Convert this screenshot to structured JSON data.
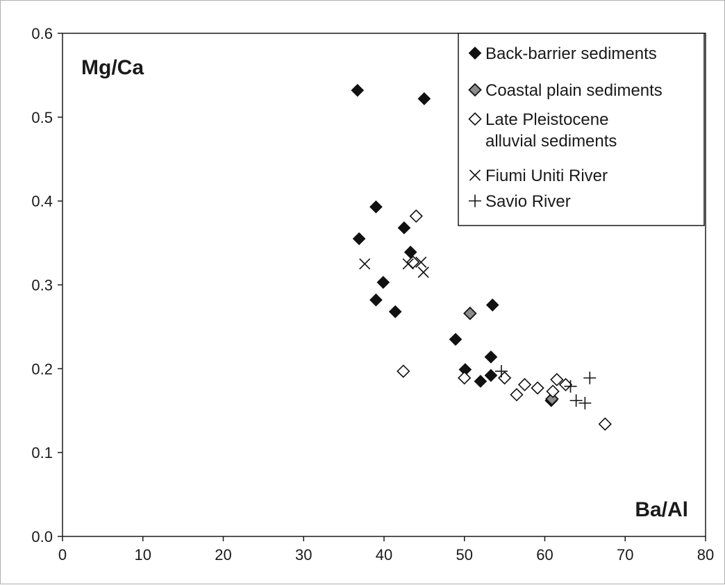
{
  "chart_data": {
    "type": "scatter",
    "ylabel": "Mg/Ca",
    "xlabel": "Ba/Al",
    "xlim": [
      0,
      80
    ],
    "ylim": [
      0.0,
      0.6
    ],
    "x_ticks": [
      "0",
      "10",
      "20",
      "30",
      "40",
      "50",
      "60",
      "70",
      "80"
    ],
    "y_ticks": [
      "0.0",
      "0.1",
      "0.2",
      "0.3",
      "0.4",
      "0.5",
      "0.6"
    ],
    "grid": false,
    "legend_position": "top-right",
    "series": [
      {
        "name": "Back-barrier sediments",
        "marker": "diamond-filled",
        "color": "#111111",
        "points": [
          [
            36.7,
            0.532
          ],
          [
            45.0,
            0.522
          ],
          [
            39.0,
            0.393
          ],
          [
            42.5,
            0.368
          ],
          [
            36.9,
            0.355
          ],
          [
            43.3,
            0.339
          ],
          [
            39.9,
            0.303
          ],
          [
            39.0,
            0.282
          ],
          [
            41.4,
            0.268
          ],
          [
            53.5,
            0.276
          ],
          [
            48.9,
            0.235
          ],
          [
            53.3,
            0.214
          ],
          [
            50.1,
            0.199
          ],
          [
            53.3,
            0.192
          ],
          [
            52.0,
            0.185
          ],
          [
            60.8,
            0.162
          ]
        ]
      },
      {
        "name": "Coastal plain sediments",
        "marker": "diamond-gray",
        "color": "#8c8c8c",
        "points": [
          [
            50.7,
            0.266
          ],
          [
            60.9,
            0.164
          ]
        ]
      },
      {
        "name": "Late Pleistocene alluvial sediments",
        "label_lines": [
          "Late Pleistocene",
          "alluvial sediments"
        ],
        "marker": "diamond-open",
        "color": "#111111",
        "points": [
          [
            44.0,
            0.382
          ],
          [
            43.6,
            0.327
          ],
          [
            42.4,
            0.197
          ],
          [
            50.0,
            0.189
          ],
          [
            55.0,
            0.189
          ],
          [
            57.5,
            0.181
          ],
          [
            59.1,
            0.177
          ],
          [
            56.5,
            0.169
          ],
          [
            61.5,
            0.187
          ],
          [
            61.0,
            0.173
          ],
          [
            62.6,
            0.181
          ],
          [
            67.5,
            0.134
          ]
        ]
      },
      {
        "name": "Fiumi Uniti River",
        "marker": "x",
        "color": "#111111",
        "points": [
          [
            37.6,
            0.325
          ],
          [
            43.0,
            0.325
          ],
          [
            44.6,
            0.327
          ],
          [
            44.9,
            0.315
          ]
        ]
      },
      {
        "name": "Savio River",
        "marker": "plus",
        "color": "#111111",
        "points": [
          [
            54.6,
            0.197
          ],
          [
            63.2,
            0.179
          ],
          [
            65.6,
            0.189
          ],
          [
            63.9,
            0.162
          ],
          [
            65.0,
            0.159
          ]
        ]
      }
    ]
  }
}
